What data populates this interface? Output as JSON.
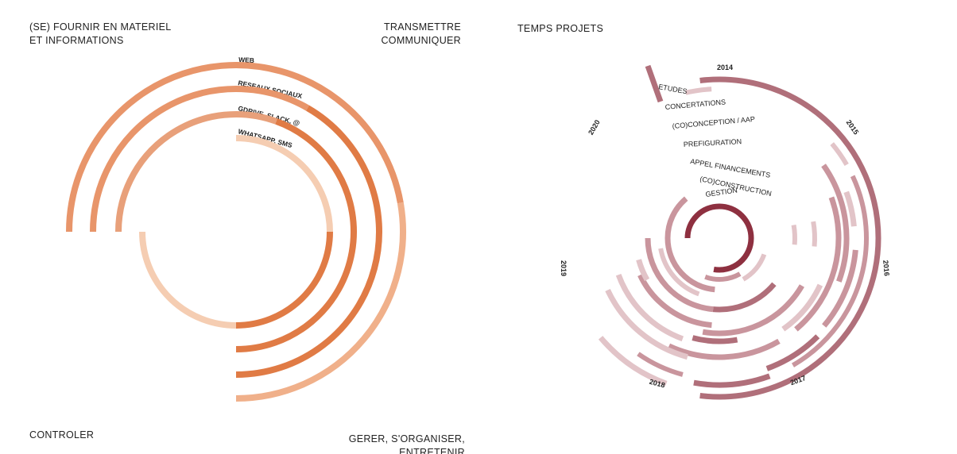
{
  "left": {
    "top_left": [
      "(SE) FOURNIR EN MATERIEL",
      "ET INFORMATIONS"
    ],
    "top_right": [
      "TRANSMETTRE",
      "COMMUNIQUER"
    ],
    "bottom_left": [
      "CONTROLER"
    ],
    "bottom_right": [
      "GERER, S'ORGANISER,",
      "ENTRETENIR"
    ],
    "rings": [
      "WEB",
      "RESEAUX SOCIAUX",
      "GDRIVE, SLACK, @",
      "WHATSAPP, SMS"
    ]
  },
  "right": {
    "title": "TEMPS PROJETS",
    "years": [
      "2014",
      "2015",
      "2016",
      "2017",
      "2018",
      "2019",
      "2020"
    ],
    "categories": [
      "ETUDES",
      "CONCERTATIONS",
      "(CO)CONCEPTION / AAP",
      "PREFIGURATION",
      "APPEL FINANCEMENTS",
      "(CO)CONSTRUCTION",
      "GESTION"
    ]
  }
}
